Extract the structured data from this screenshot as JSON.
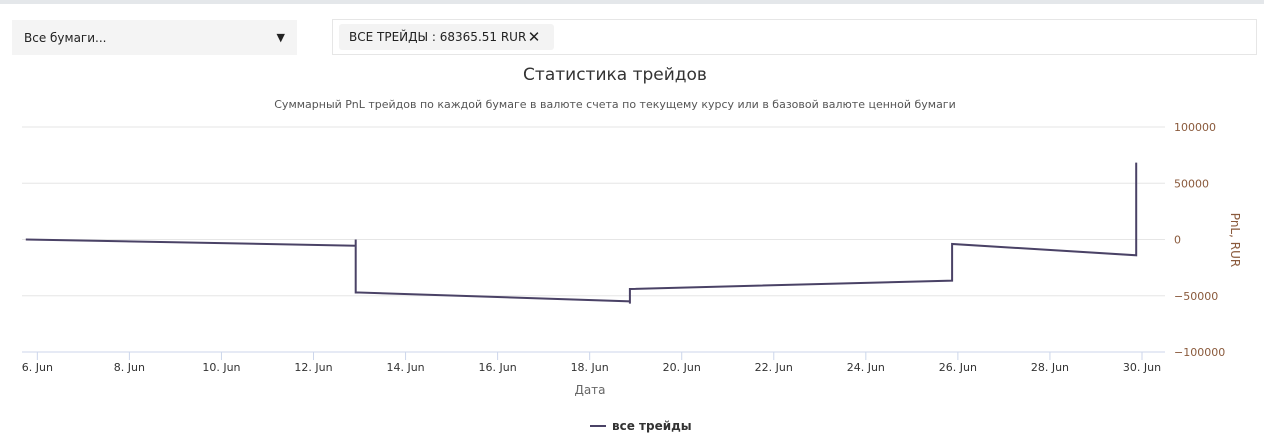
{
  "selector": {
    "value": "Все бумаги...",
    "caret": "▼"
  },
  "filter": {
    "chip_label": "ВСЕ ТРЕЙДЫ : 68365.51 RUR",
    "close_glyph": "✕"
  },
  "colors": {
    "series": "#4a4266",
    "axis_right": "#8a5a3c",
    "grid": "#e6e6e6",
    "axis_line": "#ccd6eb"
  },
  "chart_data": {
    "type": "line",
    "title": "Статистика трейдов",
    "subtitle": "Суммарный PnL трейдов по каждой бумаге в валюте счета по текущему курсу или в базовой валюте ценной бумаги",
    "xlabel": "Дата",
    "ylabel": "PnL, RUR",
    "x_ticks": [
      "6. Jun",
      "8. Jun",
      "10. Jun",
      "12. Jun",
      "14. Jun",
      "16. Jun",
      "18. Jun",
      "20. Jun",
      "22. Jun",
      "24. Jun",
      "26. Jun",
      "28. Jun",
      "30. Jun"
    ],
    "y_ticks": [
      100000,
      50000,
      0,
      -50000,
      -100000
    ],
    "y_tick_labels": [
      "100000",
      "50000",
      "0",
      "−50000",
      "−100000"
    ],
    "xlim": [
      "2024-06-05T16:00",
      "2024-06-30T12:00"
    ],
    "ylim": [
      -100000,
      100000
    ],
    "grid": true,
    "y_axis_position": "right",
    "legend_position": "bottom-center",
    "series": [
      {
        "name": "все трейды",
        "points": [
          [
            "2024-06-05T18:00",
            0
          ],
          [
            "2024-06-12T22:00",
            -5500
          ],
          [
            "2024-06-12T22:00",
            0
          ],
          [
            "2024-06-12T22:00",
            -48000
          ],
          [
            "2024-06-12T22:00",
            -47000
          ],
          [
            "2024-06-18T21:00",
            -55000
          ],
          [
            "2024-06-18T21:00",
            -57000
          ],
          [
            "2024-06-18T21:00",
            -44000
          ],
          [
            "2024-06-25T21:00",
            -36500
          ],
          [
            "2024-06-25T21:00",
            -4000
          ],
          [
            "2024-06-29T21:00",
            -14000
          ],
          [
            "2024-06-29T21:00",
            68365.51
          ]
        ]
      }
    ]
  }
}
